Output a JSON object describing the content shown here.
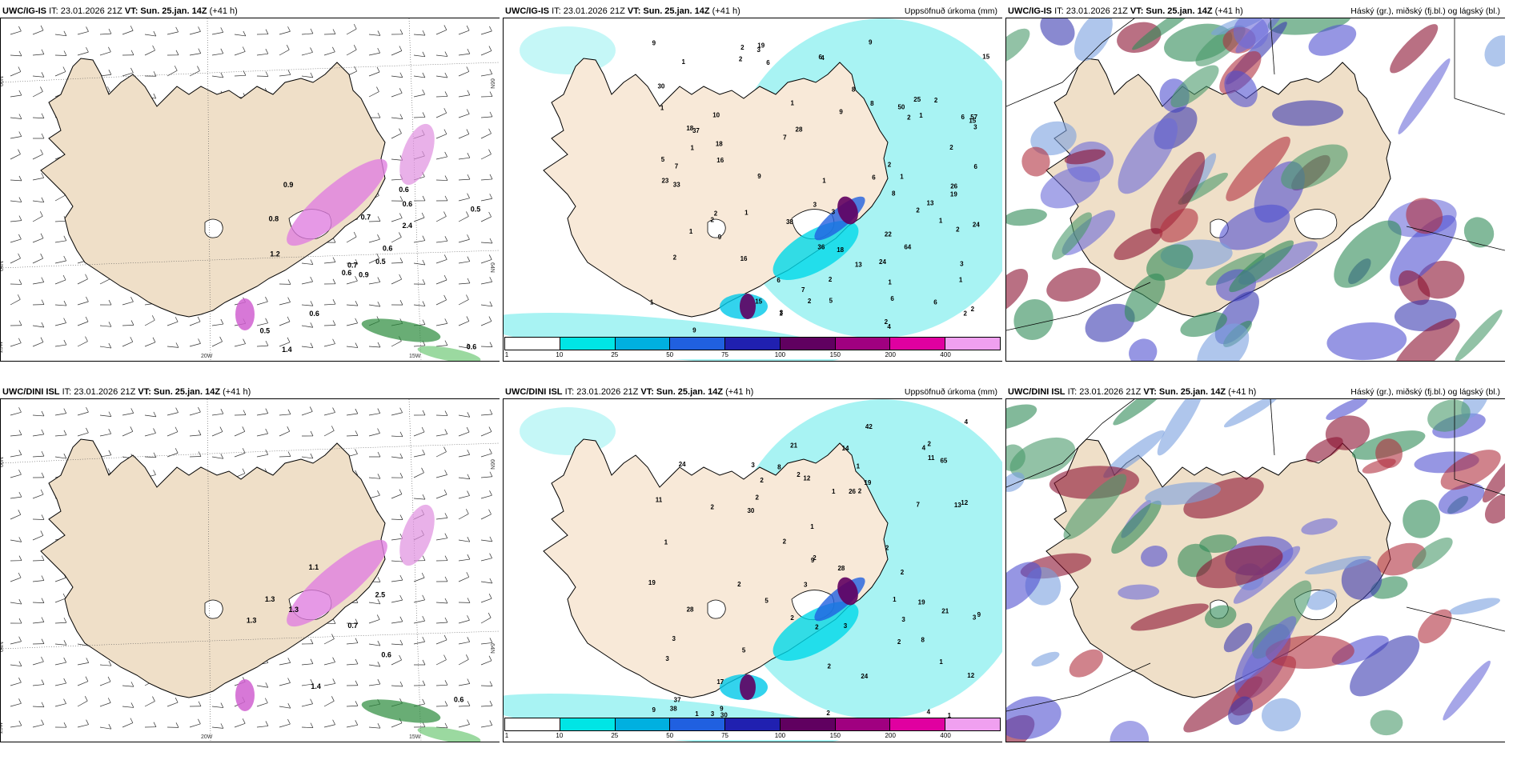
{
  "panels": [
    {
      "model": "UWC/IG-IS",
      "it": "IT: 23.01.2026 21Z",
      "vt_label": "VT:",
      "vt": "Sun. 25.jan. 14Z",
      "lead": "(+41 h)",
      "right_title": "",
      "coords": {
        "lat1": "66N",
        "lat2": "64N",
        "lon1": "20W",
        "lon2": "15W",
        "corner": "25W",
        "right1": "66N",
        "right2": "64N"
      },
      "labels": [
        "0.9",
        "0.8",
        "0.7",
        "0.5",
        "0.6",
        "0.6",
        "0.6",
        "0.7",
        "0.6",
        "0.5",
        "0.9",
        "0.6",
        "1.2",
        "0.5",
        "0.6",
        "2.4",
        "1.4"
      ]
    },
    {
      "model": "UWC/IG-IS",
      "it": "IT: 23.01.2026 21Z",
      "vt_label": "VT:",
      "vt": "Sun. 25.jan. 14Z",
      "lead": "(+41 h)",
      "right_title": "Uppsöfnuð úrkoma (mm)",
      "labels": [
        "3",
        "1",
        "2",
        "2",
        "1",
        "2",
        "3",
        "2",
        "3",
        "2",
        "4",
        "2",
        "1",
        "4",
        "2",
        "1",
        "1",
        "6",
        "2",
        "7",
        "3",
        "1",
        "2",
        "1",
        "18",
        "24",
        "33",
        "15",
        "18",
        "2",
        "16",
        "1",
        "15",
        "10",
        "8",
        "1",
        "13",
        "2",
        "2",
        "1",
        "2",
        "5",
        "1",
        "7",
        "2",
        "13",
        "2",
        "9",
        "19",
        "30",
        "5",
        "1",
        "15",
        "50",
        "57",
        "6",
        "2",
        "64",
        "26",
        "7",
        "6",
        "36",
        "37",
        "1",
        "9",
        "9",
        "18",
        "24",
        "25",
        "3",
        "6",
        "28",
        "6",
        "6",
        "38",
        "6",
        "3",
        "23",
        "19",
        "16",
        "8",
        "6",
        "22",
        "8",
        "9",
        "9",
        "9",
        "1"
      ],
      "colorbar": {
        "ticks": [
          "1",
          "10",
          "25",
          "50",
          "75",
          "100",
          "150",
          "200",
          "400"
        ],
        "colors": [
          "#ffffff",
          "#00e5e5",
          "#00b0e0",
          "#2060e0",
          "#2020b0",
          "#600060",
          "#a00080",
          "#e000a0",
          "#f0a0f0"
        ]
      }
    },
    {
      "model": "UWC/IG-IS",
      "it": "IT: 23.01.2026 21Z",
      "vt_label": "VT:",
      "vt": "Sun. 25.jan. 14Z",
      "lead": "(+41 h)",
      "right_title": "Háský (gr.), miðský (fj.bl.) og lágský (bl.)"
    },
    {
      "model": "UWC/DINI ISL",
      "it": "IT: 23.01.2026 21Z",
      "vt_label": "VT:",
      "vt": "Sun. 25.jan. 14Z",
      "lead": "(+41 h)",
      "right_title": "",
      "coords": {
        "lat1": "66N",
        "lat2": "64N",
        "lon1": "20W",
        "lon2": "15W",
        "corner": "25W",
        "right1": "66N",
        "right2": "64N"
      },
      "labels": [
        "1.3",
        "1.3",
        "0.7",
        "1.1",
        "1.4",
        "2.5",
        "1.3",
        "0.6",
        "0.6"
      ]
    },
    {
      "model": "UWC/DINI ISL",
      "it": "IT: 23.01.2026 21Z",
      "vt_label": "VT:",
      "vt": "Sun. 25.jan. 14Z",
      "lead": "(+41 h)",
      "right_title": "Uppsöfnuð úrkoma (mm)",
      "labels": [
        "1",
        "1",
        "3",
        "2",
        "2",
        "3",
        "5",
        "2",
        "4",
        "2",
        "2",
        "2",
        "1",
        "4",
        "1",
        "2",
        "2",
        "17",
        "3",
        "13",
        "2",
        "2",
        "1",
        "3",
        "3",
        "38",
        "2",
        "3",
        "30",
        "7",
        "1",
        "3",
        "21",
        "5",
        "1",
        "2",
        "28",
        "26",
        "9",
        "8",
        "9",
        "14",
        "2",
        "3",
        "2",
        "28",
        "4",
        "37",
        "1",
        "65",
        "42",
        "9",
        "19",
        "21",
        "12",
        "12",
        "24",
        "8",
        "19",
        "24",
        "12",
        "30",
        "11",
        "9",
        "19",
        "11",
        "2",
        "2"
      ],
      "colorbar": {
        "ticks": [
          "1",
          "10",
          "25",
          "50",
          "75",
          "100",
          "150",
          "200",
          "400"
        ],
        "colors": [
          "#ffffff",
          "#00e5e5",
          "#00b0e0",
          "#2060e0",
          "#2020b0",
          "#600060",
          "#a00080",
          "#e000a0",
          "#f0a0f0"
        ]
      }
    },
    {
      "model": "UWC/DINI ISL",
      "it": "IT: 23.01.2026 21Z",
      "vt_label": "VT:",
      "vt": "Sun. 25.jan. 14Z",
      "lead": "(+41 h)",
      "right_title": "Háský (gr.), miðský (fj.bl.) og lágský (bl.)"
    }
  ]
}
